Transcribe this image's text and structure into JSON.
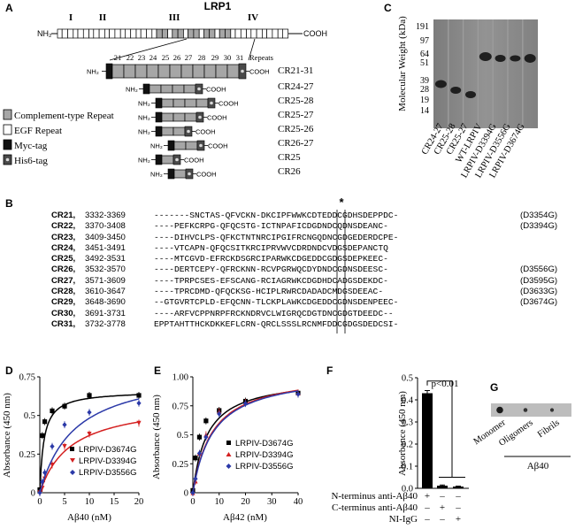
{
  "panels": {
    "A": "A",
    "B": "B",
    "C": "C",
    "D": "D",
    "E": "E",
    "F": "F",
    "G": "G"
  },
  "panel_a": {
    "title": "LRP1",
    "clusters": [
      "I",
      "II",
      "III",
      "IV"
    ],
    "nh2": "NH₂",
    "cooh": "COOH",
    "repeat_numbers": [
      "21",
      "22",
      "23",
      "24",
      "25",
      "26",
      "27",
      "28",
      "29",
      "30",
      "31"
    ],
    "repeats_label": "Repeats",
    "constructs": [
      {
        "label": "CR21-31"
      },
      {
        "label": "CR24-27"
      },
      {
        "label": "CR25-28"
      },
      {
        "label": "CR25-27"
      },
      {
        "label": "CR25-26"
      },
      {
        "label": "CR26-27"
      },
      {
        "label": "CR25"
      },
      {
        "label": "CR26"
      }
    ],
    "legend": [
      "Complement-type Repeat",
      "EGF Repeat",
      "Myc-tag",
      "His6-tag"
    ]
  },
  "panel_c": {
    "ylabel": "Molecular Weight (kDa)",
    "ticks": [
      "191",
      "97",
      "64",
      "51",
      "39",
      "28",
      "19",
      "14"
    ],
    "lanes": [
      "CR24-27",
      "CR25-28",
      "CR25-27",
      "WT-LRPIV",
      "LRPIV-D3394G",
      "LRPIV-D3556G",
      "LRPIV-D3674G"
    ]
  },
  "panel_b": {
    "star": "*",
    "rows": [
      {
        "name": "CR21,",
        "range": "3332-3369",
        "seq": "-------SNCTAS-QFVCKN-DKCIPFWWKCDTEDDCGDHSDEPPDC-",
        "mut": "(D3354G)"
      },
      {
        "name": "CR22,",
        "range": "3370-3408",
        "seq": "----PEFKCRPG-QFQCSTG-ICTNPAFICDGDNDCQDNSDEANC-",
        "mut": "(D3394G)"
      },
      {
        "name": "CR23,",
        "range": "3409-3450",
        "seq": "----DIHVCLPS-QFKCTNTNRCIPGIFRCNGQDNCGDGEDERDCPE-",
        "mut": ""
      },
      {
        "name": "CR24,",
        "range": "3451-3491",
        "seq": "----VTCAPN-QFQCSITKRCIPRVWVCDRDNDCVDGSDEPANCTQ",
        "mut": ""
      },
      {
        "name": "CR25,",
        "range": "3492-3531",
        "seq": "----MTCGVD-EFRCKDSGRCIPARWKCDGEDDCGDGSDEPKEEC-",
        "mut": ""
      },
      {
        "name": "CR26,",
        "range": "3532-3570",
        "seq": "----DERTCEPY-QFRCKNN-RCVPGRWQCDYDNDCGDNSDEESC-",
        "mut": "(D3556G)"
      },
      {
        "name": "CR27,",
        "range": "3571-3609",
        "seq": "----TPRPCSES-EFSCANG-RCIAGRWKCDGDHDCADGSDEKDC-",
        "mut": "(D3595G)"
      },
      {
        "name": "CR28,",
        "range": "3610-3647",
        "seq": "----TPRCDMD-QFQCKSG-HCIPLRWRCDADADCMDGSDEEAC-",
        "mut": "(D3633G)"
      },
      {
        "name": "CR29,",
        "range": "3648-3690",
        "seq": "--GTGVRTCPLD-EFQCNN-TLCKPLAWKCDGEDDCGDNSDENPEEC-",
        "mut": "(D3674G)"
      },
      {
        "name": "CR30,",
        "range": "3691-3731",
        "seq": "----ARFVCPPNRPFRCKNDRVCLWIGRQCDGTDNCGDGTDEEDC--",
        "mut": ""
      },
      {
        "name": "CR31,",
        "range": "3732-3778",
        "seq": "EPPTAHTTHCKDKKEFLCRN-QRCLSSSLRCNMFDDCGDGSDEDCSI-",
        "mut": ""
      }
    ]
  },
  "panel_d": {
    "xlabel": "Aβ40 (nM)",
    "ylabel": "Absorbance (450 nm)",
    "legend": [
      "LRPIV-D3674G",
      "LRPIV-D3394G",
      "LRPIV-D3556G"
    ]
  },
  "panel_e": {
    "xlabel": "Aβ42 (nM)",
    "ylabel": "Absorbance (450 nm)",
    "legend": [
      "LRPIV-D3674G",
      "LRPIV-D3394G",
      "LRPIV-D3556G"
    ]
  },
  "panel_f": {
    "ylabel": "Absorbance (450 nm)",
    "pvalue": "p<0.01",
    "rows": [
      "N-terminus anti-Aβ40",
      "C-terminus anti-Aβ40",
      "NI-IgG"
    ],
    "signs": [
      [
        "+",
        "–",
        "–"
      ],
      [
        "–",
        "+",
        "–"
      ],
      [
        "–",
        "–",
        "+"
      ]
    ]
  },
  "panel_g": {
    "lanes": [
      "Monomer",
      "Oligomers",
      "Fibrils"
    ],
    "group": "Aβ40"
  },
  "chart_data": [
    {
      "id": "D",
      "type": "scatter",
      "xlabel": "Aβ40 (nM)",
      "ylabel": "Absorbance (450 nm)",
      "xlim": [
        0,
        20
      ],
      "ylim": [
        0,
        0.75
      ],
      "xticks": [
        0,
        5,
        10,
        15,
        20
      ],
      "yticks": [
        0,
        0.25,
        0.5,
        0.75
      ],
      "series": [
        {
          "name": "LRPIV-D3674G",
          "color": "#000000",
          "marker": "square",
          "x": [
            0,
            0.5,
            1,
            2.5,
            5,
            10,
            20
          ],
          "y": [
            0.02,
            0.37,
            0.46,
            0.53,
            0.56,
            0.63,
            0.63
          ],
          "fit": {
            "bmax": 0.66,
            "kd": 0.8
          }
        },
        {
          "name": "LRPIV-D3394G",
          "color": "#d42020",
          "marker": "triangle-down",
          "x": [
            0,
            0.5,
            1,
            2.5,
            5,
            10,
            20
          ],
          "y": [
            0.0,
            0.03,
            0.09,
            0.18,
            0.3,
            0.38,
            0.45
          ],
          "fit": {
            "bmax": 0.6,
            "kd": 6.2
          }
        },
        {
          "name": "LRPIV-D3556G",
          "color": "#2b39a8",
          "marker": "diamond",
          "x": [
            0,
            0.5,
            1,
            2.5,
            5,
            10,
            20
          ],
          "y": [
            0.0,
            0.07,
            0.13,
            0.3,
            0.44,
            0.52,
            0.58
          ],
          "fit": {
            "bmax": 0.82,
            "kd": 7.0
          }
        }
      ]
    },
    {
      "id": "E",
      "type": "scatter",
      "xlabel": "Aβ42 (nM)",
      "ylabel": "Absorbance (450 nm)",
      "xlim": [
        0,
        40
      ],
      "ylim": [
        0,
        1.0
      ],
      "xticks": [
        0,
        10,
        20,
        30,
        40
      ],
      "yticks": [
        0,
        0.25,
        0.5,
        0.75,
        1.0
      ],
      "series": [
        {
          "name": "LRPIV-D3674G",
          "color": "#000000",
          "marker": "square",
          "x": [
            0,
            1,
            2.5,
            5,
            10,
            20,
            40
          ],
          "y": [
            0.02,
            0.3,
            0.48,
            0.62,
            0.71,
            0.79,
            0.86
          ],
          "fit": {
            "bmax": 1.0,
            "kd": 5.5
          }
        },
        {
          "name": "LRPIV-D3394G",
          "color": "#d42020",
          "marker": "triangle",
          "x": [
            0,
            1,
            2.5,
            5,
            10,
            20,
            40
          ],
          "y": [
            0.0,
            0.1,
            0.34,
            0.5,
            0.7,
            0.78,
            0.86
          ],
          "fit": {
            "bmax": 1.05,
            "kd": 7.5
          }
        },
        {
          "name": "LRPIV-D3556G",
          "color": "#2b39a8",
          "marker": "diamond",
          "x": [
            0,
            1,
            2.5,
            5,
            10,
            20,
            40
          ],
          "y": [
            0.0,
            0.12,
            0.34,
            0.48,
            0.68,
            0.77,
            0.85
          ],
          "fit": {
            "bmax": 1.05,
            "kd": 7.8
          }
        }
      ]
    },
    {
      "id": "F",
      "type": "bar",
      "ylabel": "Absorbance (450 nm)",
      "ylim": [
        0,
        0.5
      ],
      "yticks": [
        0.0,
        0.1,
        0.2,
        0.3,
        0.4,
        0.5
      ],
      "categories": [
        "N-terminus anti-Aβ40",
        "C-terminus anti-Aβ40",
        "NI-IgG"
      ],
      "values": [
        0.43,
        0.012,
        0.008
      ],
      "errors": [
        0.012,
        0.003,
        0.002
      ]
    }
  ]
}
